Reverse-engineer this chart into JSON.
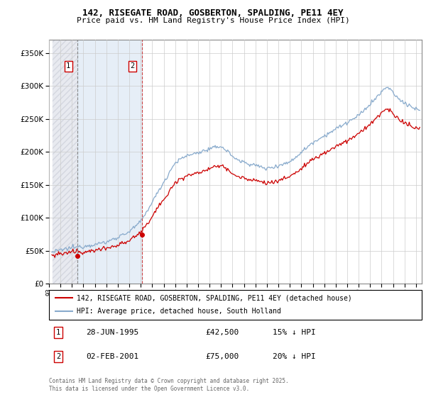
{
  "title": "142, RISEGATE ROAD, GOSBERTON, SPALDING, PE11 4EY",
  "subtitle": "Price paid vs. HM Land Registry's House Price Index (HPI)",
  "ylim": [
    0,
    370000
  ],
  "xlim_start": 1993.3,
  "xlim_end": 2025.5,
  "legend_line1": "142, RISEGATE ROAD, GOSBERTON, SPALDING, PE11 4EY (detached house)",
  "legend_line2": "HPI: Average price, detached house, South Holland",
  "transaction1_label": "1",
  "transaction1_date": "28-JUN-1995",
  "transaction1_price": "£42,500",
  "transaction1_hpi": "15% ↓ HPI",
  "transaction2_label": "2",
  "transaction2_date": "02-FEB-2001",
  "transaction2_price": "£75,000",
  "transaction2_hpi": "20% ↓ HPI",
  "footer": "Contains HM Land Registry data © Crown copyright and database right 2025.\nThis data is licensed under the Open Government Licence v3.0.",
  "sale1_x": 1995.49,
  "sale1_y": 42500,
  "sale2_x": 2001.09,
  "sale2_y": 75000,
  "price_line_color": "#cc0000",
  "hpi_line_color": "#88aacc"
}
